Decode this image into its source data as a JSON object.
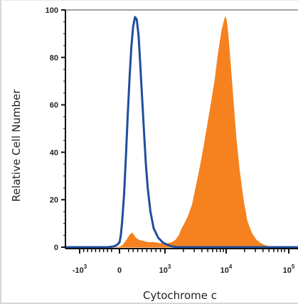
{
  "chart_data": {
    "type": "area",
    "title": "",
    "xlabel": "Cytochrome c",
    "ylabel": "Relative Cell Number",
    "ylim": [
      0,
      100
    ],
    "x_scale": "biexponential",
    "xlim": [
      -2000,
      200000
    ],
    "y_ticks": [
      0,
      20,
      40,
      60,
      80,
      100
    ],
    "x_ticks": [
      {
        "value": -1000,
        "base": "-10",
        "exp": "3"
      },
      {
        "value": 0,
        "base": "0",
        "exp": ""
      },
      {
        "value": 1000,
        "base": "10",
        "exp": "3"
      },
      {
        "value": 10000,
        "base": "10",
        "exp": "4"
      },
      {
        "value": 100000,
        "base": "10",
        "exp": "5"
      }
    ],
    "series": [
      {
        "style": "filled",
        "color": "#F5821F",
        "x": [
          -2000,
          0,
          80,
          160,
          220,
          280,
          350,
          420,
          520,
          620,
          750,
          900,
          1100,
          1300,
          1500,
          1700,
          1900,
          2100,
          2400,
          2800,
          3200,
          3700,
          4300,
          5000,
          5800,
          6600,
          7300,
          8000,
          8600,
          9200,
          9700,
          10000,
          10400,
          11000,
          11800,
          13000,
          14500,
          16500,
          19000,
          22000,
          26000,
          31000,
          37000,
          45000,
          60000,
          100000,
          200000
        ],
        "values": [
          0,
          0,
          1,
          3,
          5,
          6,
          4,
          3,
          2.5,
          2,
          2,
          1.5,
          1.5,
          2,
          3,
          5,
          8,
          10,
          13,
          18,
          25,
          33,
          42,
          52,
          62,
          71,
          80,
          87,
          92,
          95,
          97,
          96,
          93,
          86,
          76,
          62,
          46,
          32,
          20,
          11,
          6,
          3,
          1.5,
          0.5,
          0,
          0,
          0
        ]
      },
      {
        "style": "outline",
        "color": "#1F4E9C",
        "x": [
          -2000,
          -300,
          -150,
          -60,
          0,
          30,
          60,
          100,
          140,
          180,
          220,
          260,
          300,
          340,
          380,
          420,
          460,
          500,
          540,
          580,
          620,
          680,
          750,
          850,
          950,
          1100,
          1300,
          1600,
          2000,
          5000,
          200000
        ],
        "values": [
          0,
          0,
          0.3,
          1,
          2,
          5,
          11,
          22,
          38,
          55,
          71,
          84,
          93,
          97,
          96,
          89,
          76,
          62,
          48,
          35,
          25,
          15,
          8,
          4,
          2,
          1,
          0.3,
          0,
          0,
          0,
          0
        ]
      }
    ]
  }
}
